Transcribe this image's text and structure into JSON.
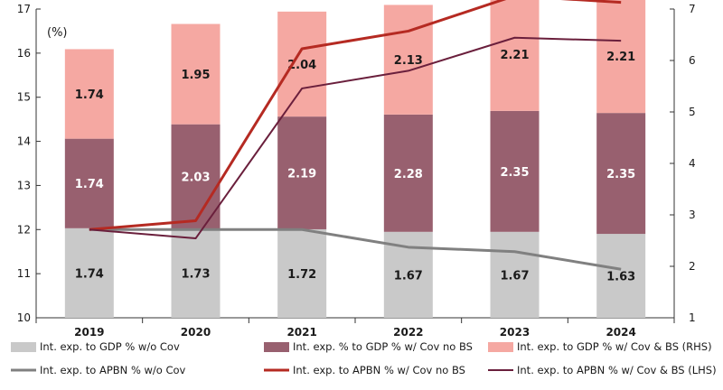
{
  "chart_data": {
    "type": "bar",
    "unit_label": "(%)",
    "categories": [
      "2019",
      "2020",
      "2021",
      "2022",
      "2023",
      "2024"
    ],
    "y_left": {
      "min": 10,
      "max": 17,
      "ticks": [
        10,
        11,
        12,
        13,
        14,
        15,
        16,
        17
      ]
    },
    "y_right": {
      "min": 1,
      "max": 7,
      "ticks": [
        1,
        2,
        3,
        4,
        5,
        6,
        7
      ]
    },
    "bar_series": [
      {
        "name": "Int. exp. to GDP % w/o Cov",
        "axis": "right",
        "color": "#c9c9c9",
        "values": [
          1.74,
          1.73,
          1.72,
          1.67,
          1.67,
          1.63
        ],
        "labels": [
          "1.74",
          "1.73",
          "1.72",
          "1.67",
          "1.67",
          "1.63"
        ],
        "label_color": "#1a1a1a"
      },
      {
        "name": "Int. exp. % to GDP % w/ Cov no BS",
        "axis": "right",
        "color": "#98606f",
        "values": [
          1.74,
          2.03,
          2.19,
          2.28,
          2.35,
          2.35
        ],
        "labels": [
          "1.74",
          "2.03",
          "2.19",
          "2.28",
          "2.35",
          "2.35"
        ],
        "label_color": "#ffffff"
      },
      {
        "name": "Int. exp. to GDP % w/ Cov & BS (RHS)",
        "axis": "right",
        "color": "#f5a8a2",
        "values": [
          1.74,
          1.95,
          2.04,
          2.13,
          2.21,
          2.21
        ],
        "labels": [
          "1.74",
          "1.95",
          "2.04",
          "2.13",
          "2.21",
          "2.21"
        ],
        "label_color": "#1a1a1a"
      }
    ],
    "line_series": [
      {
        "name": "Int. exp. to APBN % w/o Cov",
        "axis": "left",
        "color": "#808080",
        "width": 3,
        "values": [
          12.0,
          12.0,
          12.0,
          11.6,
          11.5,
          11.1
        ]
      },
      {
        "name": "Int. exp. to APBN % w/ Cov no BS",
        "axis": "left",
        "color": "#b52a22",
        "width": 3,
        "values": [
          12.0,
          12.2,
          16.1,
          16.5,
          17.3,
          17.15
        ]
      },
      {
        "name": "Int. exp. to APBN % w/ Cov & BS (LHS)",
        "axis": "left",
        "color": "#6a1f3c",
        "width": 2,
        "values": [
          12.0,
          11.8,
          15.2,
          15.6,
          16.35,
          16.28
        ]
      }
    ],
    "legend_position": "bottom",
    "grid": false
  }
}
